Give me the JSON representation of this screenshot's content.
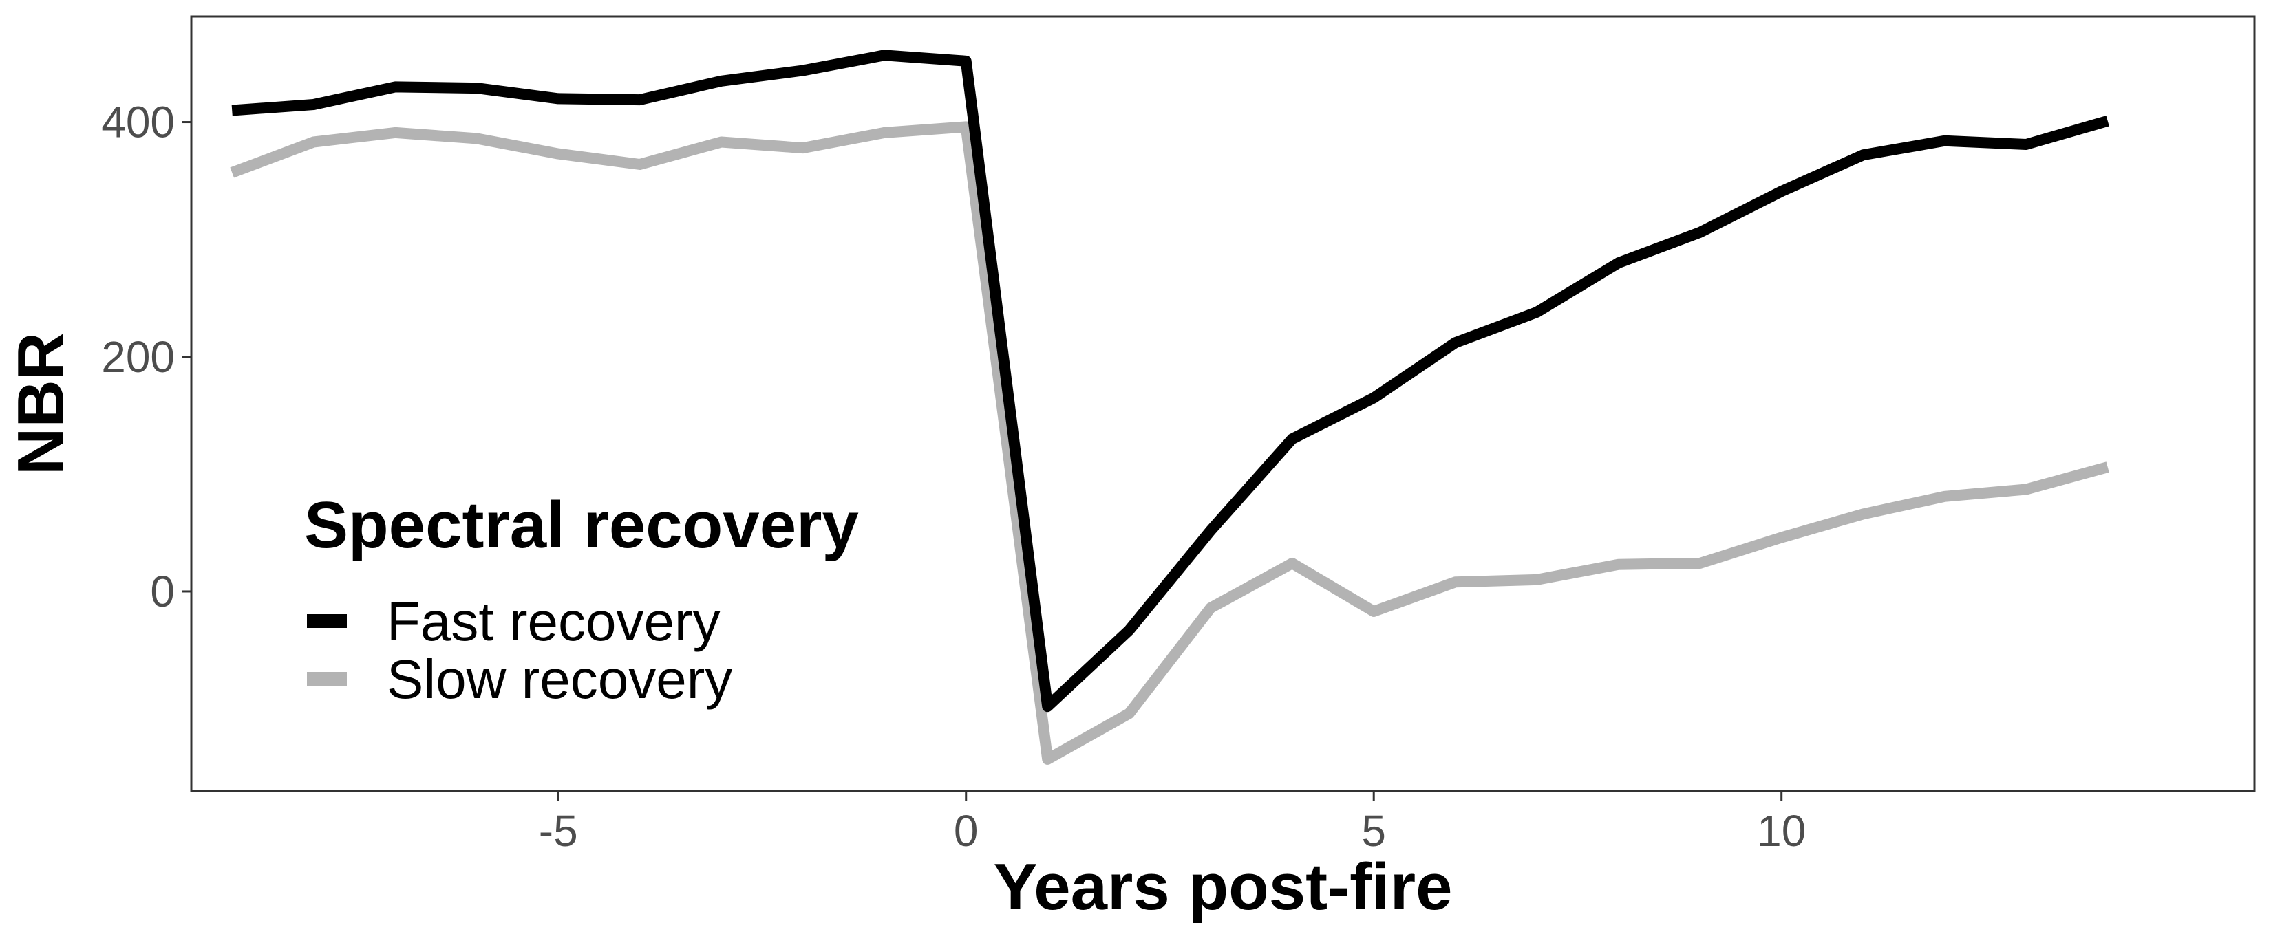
{
  "chart_data": {
    "type": "line",
    "xlabel": "Years post-fire",
    "ylabel": "NBR",
    "xlim": [
      -9.5,
      15.8
    ],
    "ylim": [
      -170,
      490
    ],
    "x_ticks": [
      -5,
      0,
      5,
      10
    ],
    "y_ticks": [
      0,
      200,
      400
    ],
    "grid": false,
    "legend": {
      "title": "Spectral recovery",
      "placement": "bottom-left (inside)"
    },
    "x": [
      -9,
      -8,
      -7,
      -6,
      -5,
      -4,
      -3,
      -2,
      -1,
      0,
      1,
      2,
      3,
      4,
      5,
      6,
      7,
      8,
      9,
      10,
      11,
      12,
      13,
      14
    ],
    "series": [
      {
        "name": "Fast recovery",
        "color": "#000000",
        "values": [
          410,
          415,
          430,
          429,
          420,
          419,
          435,
          444,
          457,
          452,
          -98,
          -33,
          52,
          130,
          165,
          212,
          238,
          280,
          306,
          341,
          372,
          384,
          381,
          401
        ]
      },
      {
        "name": "Slow recovery",
        "color": "#b3b3b3",
        "values": [
          357,
          383,
          391,
          386,
          373,
          364,
          383,
          378,
          391,
          396,
          -143,
          -104,
          -14,
          24,
          -17,
          8,
          10,
          23,
          24,
          46,
          66,
          81,
          87,
          106
        ]
      }
    ]
  }
}
